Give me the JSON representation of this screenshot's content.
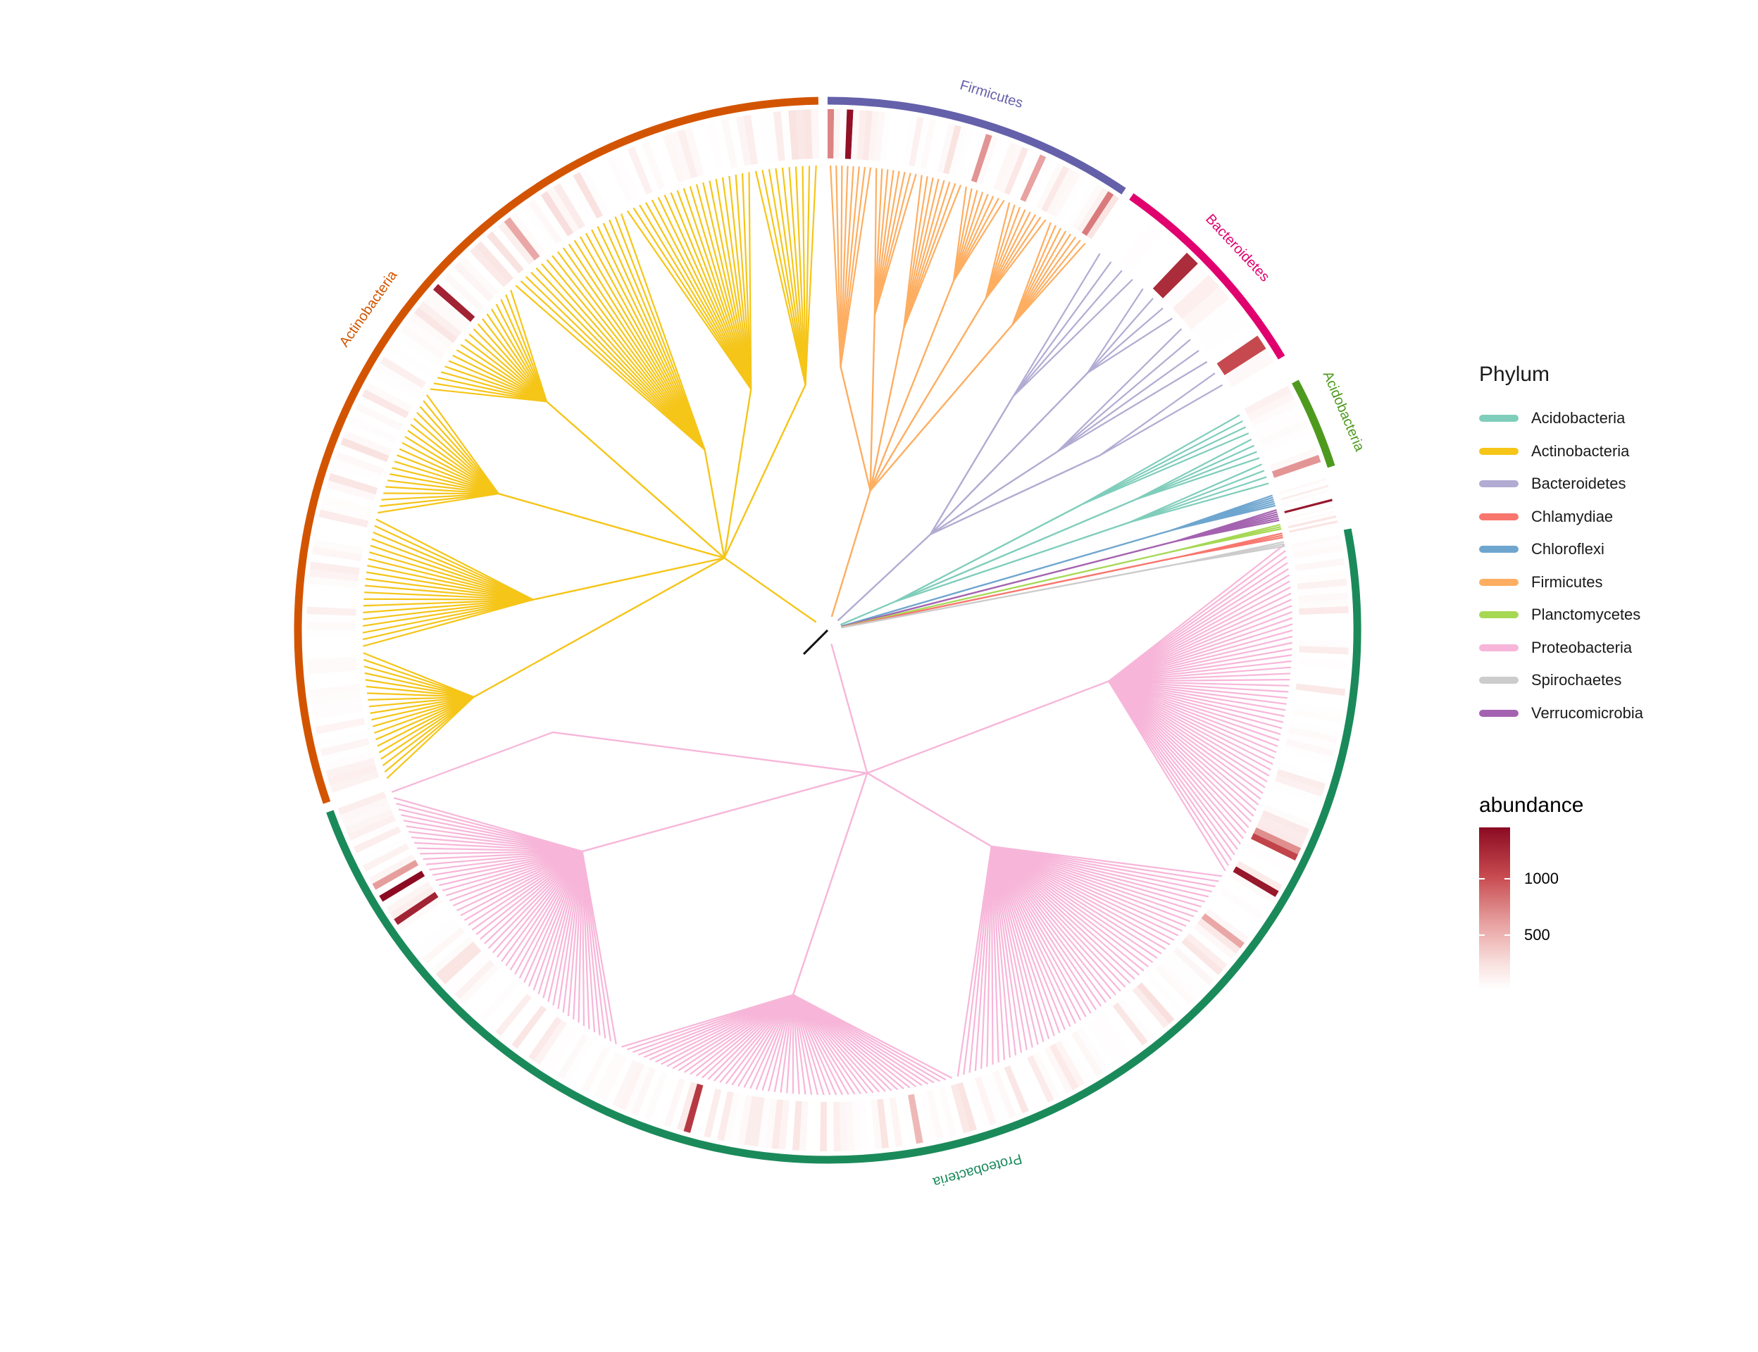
{
  "chart_data": {
    "type": "circular-phylogenetic-tree",
    "title": "",
    "phyla": [
      {
        "name": "Acidobacteria",
        "color": "#7fcdbb"
      },
      {
        "name": "Actinobacteria",
        "color": "#f5c518"
      },
      {
        "name": "Bacteroidetes",
        "color": "#b2abd2"
      },
      {
        "name": "Chlamydiae",
        "color": "#f8766d"
      },
      {
        "name": "Chloroflexi",
        "color": "#6fa6cf"
      },
      {
        "name": "Firmicutes",
        "color": "#fdae61"
      },
      {
        "name": "Planctomycetes",
        "color": "#a6d854"
      },
      {
        "name": "Proteobacteria",
        "color": "#f7b6d9"
      },
      {
        "name": "Spirochaetes",
        "color": "#cccccc"
      },
      {
        "name": "Verrucomicrobia",
        "color": "#a463b0"
      }
    ],
    "clade_labels": [
      {
        "name": "Proteobacteria",
        "color": "#1b8a5a",
        "start_deg": -11,
        "end_deg": 160,
        "leaves": 225
      },
      {
        "name": "Actinobacteria",
        "color": "#d35400",
        "start_deg": 161,
        "end_deg": 269,
        "leaves": 130
      },
      {
        "name": "Firmicutes",
        "color": "#6460aa",
        "start_deg": 270,
        "end_deg": 304,
        "leaves": 48
      },
      {
        "name": "Bacteroidetes",
        "color": "#e0006e",
        "start_deg": 305,
        "end_deg": 329,
        "leaves": 14
      },
      {
        "name": "Acidobacteria",
        "color": "#4e9a1e",
        "start_deg": 332,
        "end_deg": 342,
        "leaves": 12
      }
    ],
    "small_groups": [
      {
        "phylum": "Chloroflexi",
        "leaves": 6
      },
      {
        "phylum": "Verrucomicrobia",
        "leaves": 6
      },
      {
        "phylum": "Planctomycetes",
        "leaves": 3
      },
      {
        "phylum": "Chlamydiae",
        "leaves": 3
      },
      {
        "phylum": "Spirochaetes",
        "leaves": 3
      }
    ],
    "abundance": {
      "name": "abundance",
      "min": 0,
      "max": 1450,
      "ticks": [
        500,
        1000
      ],
      "colors": [
        "#ffffff",
        "#f9e2e0",
        "#e8a3a2",
        "#c74a4f",
        "#8b0a22"
      ]
    }
  },
  "legend": {
    "title": "Phylum",
    "items": [
      "Acidobacteria",
      "Actinobacteria",
      "Bacteroidetes",
      "Chlamydiae",
      "Chloroflexi",
      "Firmicutes",
      "Planctomycetes",
      "Proteobacteria",
      "Spirochaetes",
      "Verrucomicrobia"
    ]
  },
  "colorbar": {
    "title": "abundance",
    "tick_high": "1000",
    "tick_low": "500"
  }
}
